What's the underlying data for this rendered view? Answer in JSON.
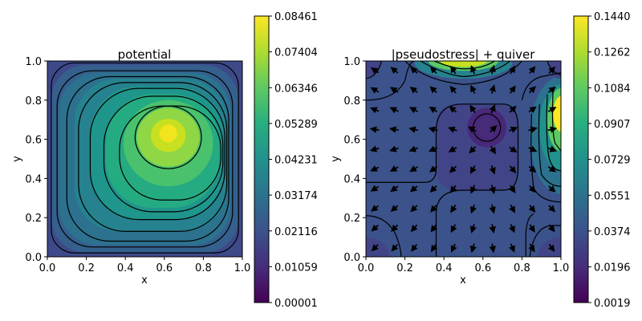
{
  "chart_data": [
    {
      "type": "heatmap",
      "title": "potential",
      "xlabel": "x",
      "ylabel": "y",
      "xlim": [
        0.0,
        1.0
      ],
      "ylim": [
        0.0,
        1.0
      ],
      "xticks": [
        "0.0",
        "0.2",
        "0.4",
        "0.6",
        "0.8",
        "1.0"
      ],
      "yticks": [
        "0.0",
        "0.2",
        "0.4",
        "0.6",
        "0.8",
        "1.0"
      ],
      "colormap": "viridis",
      "peak": {
        "x": 0.62,
        "y": 0.62
      },
      "colorbar": {
        "min": 1e-05,
        "max": 0.08461,
        "ticks": [
          "0.00001",
          "0.01059",
          "0.02116",
          "0.03174",
          "0.04231",
          "0.05289",
          "0.06346",
          "0.07404",
          "0.08461"
        ]
      },
      "contour_color": "#000000"
    },
    {
      "type": "heatmap",
      "title": "|pseudostress| + quiver",
      "xlabel": "x",
      "ylabel": "y",
      "xlim": [
        0.0,
        1.0
      ],
      "ylim": [
        0.0,
        1.0
      ],
      "xticks": [
        "0.0",
        "0.2",
        "0.4",
        "0.6",
        "0.8",
        "1.0"
      ],
      "yticks": [
        "0.0",
        "0.2",
        "0.4",
        "0.6",
        "0.8",
        "1.0"
      ],
      "colormap": "viridis",
      "colorbar": {
        "min": 0.0019,
        "max": 0.144,
        "ticks": [
          "0.0019",
          "0.0196",
          "0.0374",
          "0.0551",
          "0.0729",
          "0.0907",
          "0.1084",
          "0.1262",
          "0.1440"
        ]
      },
      "quiver_grid": 10,
      "contour_color": "#000000"
    }
  ]
}
